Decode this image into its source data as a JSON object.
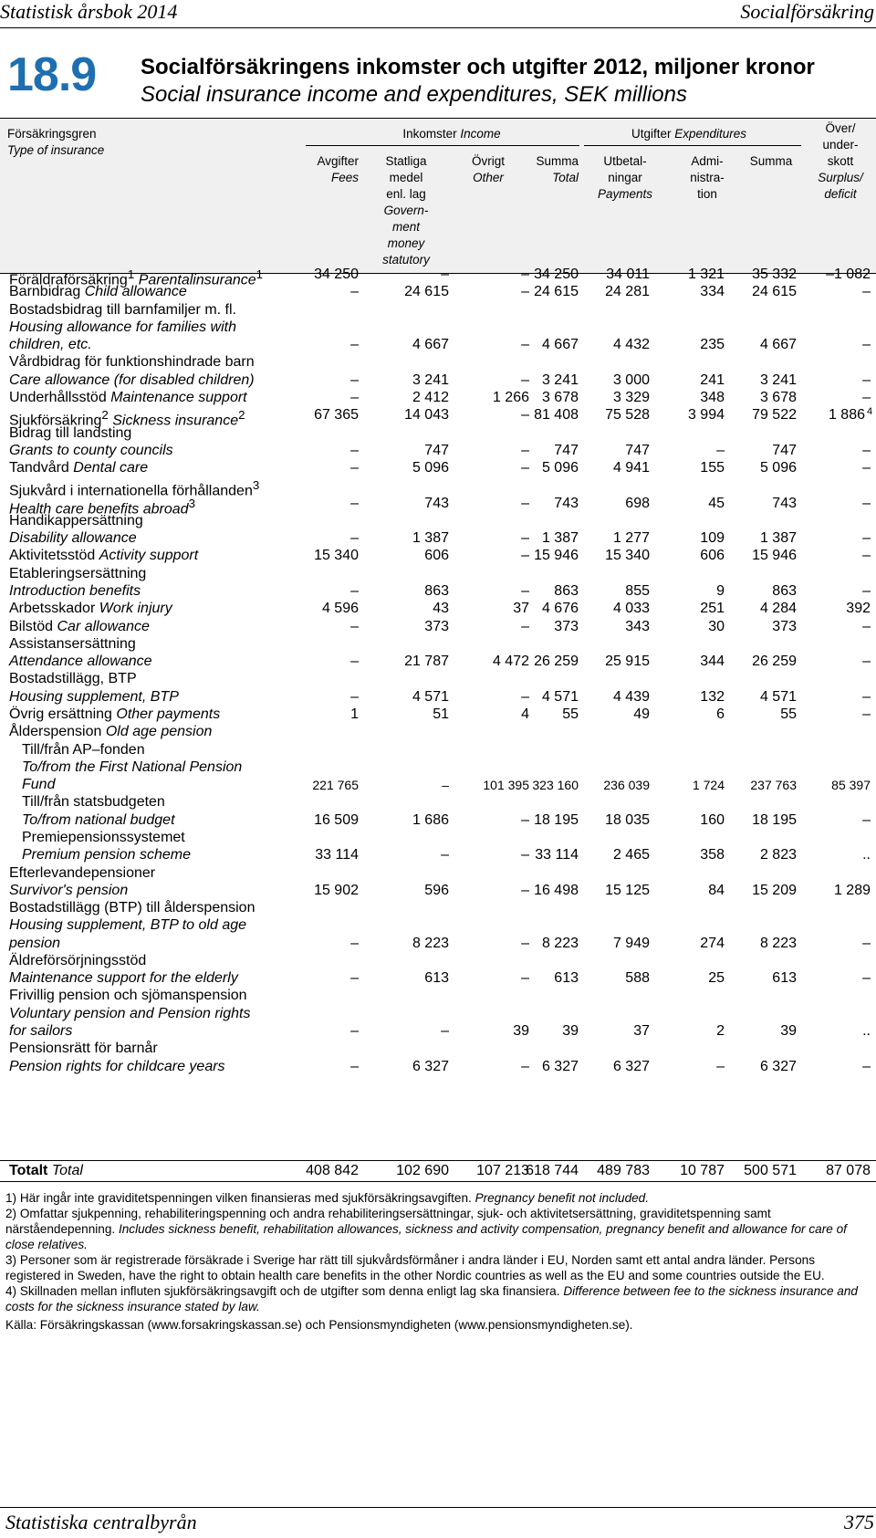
{
  "page_header": {
    "left": "Statistisk årsbok 2014",
    "right": "Socialförsäkring"
  },
  "table_number": "18.9",
  "title_sv": "Socialförsäkringens inkomster och utgifter 2012, miljoner kronor",
  "title_en": "Social insurance income and expenditures, SEK millions",
  "col_headers": {
    "stub_sv": "Försäkringsgren",
    "stub_en": "Type of insurance",
    "income_group_sv": "Inkomster",
    "income_group_en": "Income",
    "exp_group_sv": "Utgifter",
    "exp_group_en": "Expenditures",
    "fees_sv": "Avgifter",
    "fees_en": "Fees",
    "gov_sv1": "Statliga",
    "gov_sv2": "medel",
    "gov_sv3": "enl. lag",
    "gov_en1": "Govern-",
    "gov_en2": "ment",
    "gov_en3": "money",
    "gov_en4": "statutory",
    "other_sv": "Övrigt",
    "other_en": "Other",
    "sum_sv": "Summa",
    "sum_en": "Total",
    "pay_sv1": "Utbetal-",
    "pay_sv2": "ningar",
    "pay_en": "Payments",
    "adm_sv1": "Admi-",
    "adm_sv2": "nistra-",
    "adm_sv3": "tion",
    "exp_sum_sv": "Summa",
    "surplus_sv1": "Över/",
    "surplus_sv2": "under-",
    "surplus_sv3": "skott",
    "surplus_en1": "Surplus/",
    "surplus_en2": "deficit"
  },
  "rows": [
    {
      "label_sv": "Föräldraförsäkring",
      "sup1": "1",
      "label_en": "Parentalinsurance",
      "sup2": "1",
      "values": [
        "34 250",
        "–",
        "–",
        "34 250",
        "34 011",
        "1 321",
        "35 332",
        "–1 082"
      ]
    },
    {
      "label_sv": "Barnbidrag",
      "label_en": "Child allowance",
      "values": [
        "–",
        "24 615",
        "–",
        "24 615",
        "24 281",
        "334",
        "24 615",
        "–"
      ]
    },
    {
      "label_sv": "Bostadsbidrag till barnfamiljer m. fl.",
      "values": []
    },
    {
      "label_en": "Housing allowance for families with",
      "values": []
    },
    {
      "label_en": "children, etc.",
      "values": [
        "–",
        "4 667",
        "–",
        "4 667",
        "4 432",
        "235",
        "4 667",
        "–"
      ]
    },
    {
      "label_sv": "Vårdbidrag för funktionshindrade barn",
      "values": []
    },
    {
      "label_en": "Care allowance (for disabled children)",
      "values": [
        "–",
        "3 241",
        "–",
        "3 241",
        "3 000",
        "241",
        "3 241",
        "–"
      ]
    },
    {
      "label_sv": "Underhållsstöd",
      "label_en": "Maintenance support",
      "values": [
        "–",
        "2 412",
        "1 266",
        "3 678",
        "3 329",
        "348",
        "3 678",
        "–"
      ]
    },
    {
      "label_sv": "Sjukförsäkring",
      "sup1": "2",
      "label_en": "Sickness insurance",
      "sup2": "2",
      "values": [
        "67 365",
        "14 043",
        "–",
        "81 408",
        "75 528",
        "3 994",
        "79 522",
        "1 886"
      ],
      "last_sup": "4"
    },
    {
      "label_sv": "Bidrag till landsting",
      "values": []
    },
    {
      "label_en": "Grants to county councils",
      "values": [
        "–",
        "747",
        "–",
        "747",
        "747",
        "–",
        "747",
        "–"
      ]
    },
    {
      "label_sv": "Tandvård",
      "label_en": "Dental care",
      "values": [
        "–",
        "5 096",
        "–",
        "5 096",
        "4 941",
        "155",
        "5 096",
        "–"
      ]
    },
    {
      "label_sv": "Sjukvård i internationella förhållanden",
      "sup1": "3",
      "values": []
    },
    {
      "label_en": "Health care benefits abroad",
      "sup2": "3",
      "values": [
        "–",
        "743",
        "–",
        "743",
        "698",
        "45",
        "743",
        "–"
      ]
    },
    {
      "label_sv": "Handikappersättning",
      "values": []
    },
    {
      "label_en": "Disability allowance",
      "values": [
        "–",
        "1 387",
        "–",
        "1 387",
        "1 277",
        "109",
        "1 387",
        "–"
      ]
    },
    {
      "label_sv": "Aktivitetsstöd",
      "label_en": "Activity support",
      "values": [
        "15 340",
        "606",
        "–",
        "15 946",
        "15 340",
        "606",
        "15 946",
        "–"
      ]
    },
    {
      "label_sv": "Etableringsersättning",
      "values": []
    },
    {
      "label_en": "Introduction benefits",
      "values": [
        "–",
        "863",
        "–",
        "863",
        "855",
        "9",
        "863",
        "–"
      ]
    },
    {
      "label_sv": "Arbetsskador",
      "label_en": "Work injury",
      "values": [
        "4 596",
        "43",
        "37",
        "4 676",
        "4 033",
        "251",
        "4 284",
        "392"
      ]
    },
    {
      "label_sv": "Bilstöd",
      "label_en": "Car allowance",
      "values": [
        "–",
        "373",
        "–",
        "373",
        "343",
        "30",
        "373",
        "–"
      ]
    },
    {
      "label_sv": "Assistansersättning",
      "values": []
    },
    {
      "label_en": "Attendance allowance",
      "values": [
        "–",
        "21 787",
        "4 472",
        "26 259",
        "25 915",
        "344",
        "26 259",
        "–"
      ]
    },
    {
      "label_sv": "Bostadstillägg, BTP",
      "values": []
    },
    {
      "label_en": "Housing supplement, BTP",
      "values": [
        "–",
        "4 571",
        "–",
        "4 571",
        "4 439",
        "132",
        "4 571",
        "–"
      ]
    },
    {
      "label_sv": "Övrig ersättning",
      "label_en": "Other payments",
      "values": [
        "1",
        "51",
        "4",
        "55",
        "49",
        "6",
        "55",
        "–"
      ]
    },
    {
      "label_sv": "Ålderspension",
      "label_en": "Old age pension",
      "values": []
    },
    {
      "label_sv": "Till/från AP–fonden",
      "indent": true,
      "values": []
    },
    {
      "label_en": "To/from the First National Pension",
      "indent": true,
      "values": []
    },
    {
      "label_en": "Fund",
      "indent": true,
      "small": true,
      "values": [
        "221 765",
        "–",
        "101 395",
        "323 160",
        "236 039",
        "1 724",
        "237 763",
        "85 397"
      ]
    },
    {
      "label_sv": "Till/från statsbudgeten",
      "indent": true,
      "values": []
    },
    {
      "label_en": "To/from national budget",
      "indent": true,
      "values": [
        "16 509",
        "1 686",
        "–",
        "18 195",
        "18 035",
        "160",
        "18 195",
        "–"
      ]
    },
    {
      "label_sv": "Premiepensionssystemet",
      "indent": true,
      "values": []
    },
    {
      "label_en": "Premium pension scheme",
      "indent": true,
      "values": [
        "33 114",
        "–",
        "–",
        "33 114",
        "2 465",
        "358",
        "2 823",
        ".."
      ]
    },
    {
      "label_sv": "Efterlevandepensioner",
      "values": []
    },
    {
      "label_en": "Survivor's pension",
      "values": [
        "15 902",
        "596",
        "–",
        "16 498",
        "15 125",
        "84",
        "15 209",
        "1 289"
      ]
    },
    {
      "label_sv": "Bostadstillägg (BTP) till ålderspension",
      "values": []
    },
    {
      "label_en": "Housing supplement, BTP to old age",
      "values": []
    },
    {
      "label_en": "pension",
      "values": [
        "–",
        "8 223",
        "–",
        "8 223",
        "7 949",
        "274",
        "8 223",
        "–"
      ]
    },
    {
      "label_sv": "Äldreförsörjningsstöd",
      "values": []
    },
    {
      "label_en": "Maintenance support for the elderly",
      "values": [
        "–",
        "613",
        "–",
        "613",
        "588",
        "25",
        "613",
        "–"
      ]
    },
    {
      "label_sv": "Frivillig pension och sjömanspension",
      "values": []
    },
    {
      "label_en": "Voluntary pension and Pension rights",
      "values": []
    },
    {
      "label_en": "for sailors",
      "values": [
        "–",
        "–",
        "39",
        "39",
        "37",
        "2",
        "39",
        ".."
      ]
    },
    {
      "label_sv": "Pensionsrätt för barnår",
      "values": []
    },
    {
      "label_en": "Pension rights for childcare years",
      "values": [
        "–",
        "6 327",
        "–",
        "6 327",
        "6 327",
        "–",
        "6 327",
        "–"
      ]
    }
  ],
  "total": {
    "label_sv": "Totalt",
    "label_en": "Total",
    "values": [
      "408 842",
      "102 690",
      "107 213",
      "618 744",
      "489 783",
      "10 787",
      "500 571",
      "87 078"
    ]
  },
  "notes": {
    "n1_sv": "1) Här ingår inte graviditetspenningen vilken finansieras med sjukförsäkringsavgiften. ",
    "n1_en": "Pregnancy benefit not included.",
    "n2_sv": "2) Omfattar sjukpenning, rehabiliteringspenning och andra rehabiliteringsersättningar, sjuk- och aktivitetsersättning, graviditetspenning samt närståendepenning. ",
    "n2_en": "Includes sickness benefit, rehabilitation allowances, sickness and activity compensation, pregnancy benefit and allowance for care of close relatives.",
    "n3_sv": "3) Personer som är registrerade försäkrade i Sverige har rätt till sjukvårdsförmåner i andra länder i EU, Norden samt ett antal andra länder. Persons registered in Sweden, have the right to obtain health care benefits in the other Nordic countries as well as the EU and some countries outside the EU.",
    "n4_sv": "4) Skillnaden mellan influten sjukförsäkringsavgift och de utgifter som denna enligt lag ska finansiera. ",
    "n4_en": "Difference between fee to the sickness insurance and costs for the sickness insurance stated by law.",
    "source": "Källa: Försäkringskassan (www.forsakringskassan.se) och Pensionsmyndigheten (www.pensionsmyndigheten.se)."
  },
  "page_footer": {
    "left": "Statistiska centralbyrån",
    "right": "375"
  },
  "colors": {
    "title_number": "#1f6fb0",
    "header_bg": "#f0f0f0"
  }
}
